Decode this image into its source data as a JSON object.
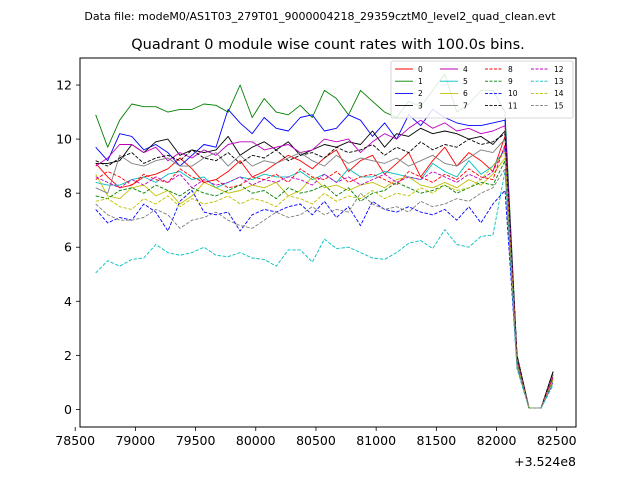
{
  "chart_data": {
    "type": "line",
    "suptitle": "Data file: modeM0/AS1T03_279T01_9000004218_29359cztM0_level2_quad_clean.evt",
    "title": "Quadrant 0 module wise count rates with 100.0s bins.",
    "xlabel": "",
    "ylabel": "",
    "x_offset_label": "+3.524e8",
    "x_offset": 352400000,
    "xlim": [
      78540,
      82660
    ],
    "ylim": [
      -0.65,
      13.0
    ],
    "x_ticks": [
      78500,
      79000,
      79500,
      80000,
      80500,
      81000,
      81500,
      82000,
      82500
    ],
    "x_tick_labels": [
      "78500",
      "79000",
      "79500",
      "80000",
      "80500",
      "81000",
      "81500",
      "82000",
      "82500"
    ],
    "y_ticks": [
      0,
      2,
      4,
      6,
      8,
      10,
      12
    ],
    "y_tick_labels": [
      "0",
      "2",
      "4",
      "6",
      "8",
      "10",
      "12"
    ],
    "grid": false,
    "legend_location": "upper-right",
    "legend_columns": 4,
    "x": [
      78670,
      78770,
      78870,
      78970,
      79070,
      79170,
      79270,
      79370,
      79470,
      79570,
      79670,
      79770,
      79870,
      79970,
      80070,
      80170,
      80270,
      80370,
      80470,
      80570,
      80670,
      80770,
      80870,
      80970,
      81070,
      81170,
      81270,
      81370,
      81470,
      81570,
      81670,
      81770,
      81870,
      81970,
      82070,
      82170,
      82270,
      82370,
      82470
    ],
    "series": [
      {
        "name": "0",
        "color": "#ff0000",
        "dash": "solid",
        "values": [
          9.1,
          8.6,
          8.2,
          8.3,
          8.6,
          8.7,
          8.9,
          9.3,
          8.9,
          8.4,
          8.5,
          8.8,
          9.2,
          8.6,
          8.8,
          9.1,
          9.4,
          9.2,
          8.9,
          9.3,
          9.6,
          8.8,
          9.2,
          9.4,
          8.7,
          9.1,
          9.5,
          8.6,
          9.2,
          9.7,
          9.0,
          9.5,
          9.2,
          8.8,
          10.1,
          1.8,
          0.05,
          0.05,
          1.2
        ]
      },
      {
        "name": "1",
        "color": "#008000",
        "dash": "solid",
        "values": [
          10.9,
          9.7,
          10.7,
          11.3,
          11.2,
          11.2,
          11.0,
          11.1,
          11.1,
          11.3,
          11.25,
          11.0,
          12.0,
          10.8,
          11.5,
          11.0,
          10.9,
          11.25,
          10.8,
          11.8,
          11.5,
          10.9,
          11.8,
          11.4,
          11.0,
          10.8,
          11.4,
          11.2,
          11.8,
          12.4,
          11.0,
          11.3,
          11.8,
          11.8,
          11.0,
          2.0,
          0.05,
          0.05,
          1.3
        ]
      },
      {
        "name": "2",
        "color": "#0000ff",
        "dash": "solid",
        "values": [
          9.7,
          9.2,
          10.2,
          10.1,
          9.6,
          9.8,
          9.5,
          9.0,
          9.4,
          9.8,
          9.7,
          11.1,
          10.6,
          10.2,
          10.8,
          10.4,
          10.3,
          10.8,
          10.9,
          10.3,
          10.4,
          10.9,
          10.7,
          10.1,
          10.6,
          10.0,
          10.9,
          10.5,
          11.1,
          10.8,
          10.6,
          10.5,
          10.5,
          10.6,
          10.7,
          1.9,
          0.05,
          0.05,
          1.4
        ]
      },
      {
        "name": "3",
        "color": "#000000",
        "dash": "solid",
        "values": [
          9.1,
          9.1,
          9.2,
          9.8,
          9.5,
          9.9,
          10.0,
          9.4,
          9.6,
          9.5,
          9.6,
          10.1,
          9.4,
          9.7,
          9.9,
          9.6,
          9.9,
          9.4,
          9.6,
          9.8,
          9.7,
          9.9,
          9.8,
          10.3,
          9.7,
          10.2,
          10.1,
          10.4,
          10.2,
          10.3,
          10.2,
          10.0,
          10.1,
          9.8,
          10.3,
          2.0,
          0.05,
          0.05,
          1.4
        ]
      },
      {
        "name": "4",
        "color": "#bf00bf",
        "dash": "solid",
        "values": [
          9.0,
          9.3,
          9.8,
          9.8,
          9.5,
          9.7,
          9.2,
          9.5,
          9.3,
          9.6,
          9.4,
          9.8,
          9.9,
          9.9,
          9.6,
          9.7,
          9.8,
          9.5,
          9.6,
          10.0,
          9.9,
          10.0,
          9.5,
          9.9,
          10.2,
          10.0,
          10.4,
          10.7,
          10.4,
          10.6,
          10.3,
          10.4,
          10.2,
          10.3,
          10.5,
          1.9,
          0.05,
          0.05,
          1.3
        ]
      },
      {
        "name": "5",
        "color": "#00bfbf",
        "dash": "solid",
        "values": [
          8.4,
          8.3,
          8.3,
          8.5,
          8.6,
          8.4,
          8.7,
          8.8,
          8.5,
          8.6,
          8.2,
          8.4,
          8.6,
          8.5,
          8.7,
          8.6,
          8.6,
          8.8,
          8.5,
          8.7,
          8.4,
          8.9,
          8.6,
          8.6,
          8.8,
          8.7,
          8.6,
          8.5,
          9.1,
          8.8,
          8.6,
          9.2,
          8.7,
          9.0,
          9.6,
          1.8,
          0.05,
          0.05,
          1.2
        ]
      },
      {
        "name": "6",
        "color": "#bfbf00",
        "dash": "solid",
        "values": [
          8.7,
          7.9,
          7.8,
          8.2,
          8.3,
          7.9,
          8.1,
          7.6,
          7.9,
          8.4,
          8.2,
          8.0,
          8.1,
          8.3,
          8.2,
          8.4,
          7.9,
          8.1,
          8.6,
          8.2,
          8.3,
          8.1,
          8.3,
          8.4,
          8.2,
          8.5,
          8.6,
          8.3,
          8.2,
          8.4,
          8.2,
          8.5,
          8.3,
          8.7,
          9.3,
          1.7,
          0.05,
          0.05,
          1.1
        ]
      },
      {
        "name": "7",
        "color": "#7f7f7f",
        "dash": "solid",
        "values": [
          8.2,
          8.0,
          9.4,
          9.1,
          9.0,
          9.2,
          9.3,
          9.0,
          9.0,
          9.3,
          9.5,
          9.0,
          9.4,
          9.0,
          9.2,
          9.1,
          9.3,
          9.5,
          9.2,
          9.0,
          9.4,
          9.1,
          9.3,
          9.2,
          9.1,
          9.3,
          9.0,
          9.2,
          9.4,
          9.1,
          9.0,
          9.3,
          9.6,
          9.5,
          10.0,
          1.9,
          0.05,
          0.05,
          1.3
        ]
      },
      {
        "name": "8",
        "color": "#ff0000",
        "dash": "dashed",
        "values": [
          8.5,
          8.8,
          8.6,
          8.3,
          8.7,
          8.5,
          8.4,
          8.9,
          8.6,
          8.4,
          8.5,
          8.2,
          8.3,
          8.6,
          8.5,
          8.7,
          8.4,
          8.9,
          8.6,
          8.5,
          8.8,
          8.4,
          8.6,
          8.7,
          8.5,
          8.3,
          8.8,
          8.6,
          8.4,
          8.7,
          8.5,
          8.9,
          8.6,
          8.5,
          9.8,
          1.8,
          0.05,
          0.05,
          1.2
        ]
      },
      {
        "name": "9",
        "color": "#008000",
        "dash": "dashed",
        "values": [
          7.9,
          7.8,
          8.1,
          8.2,
          8.0,
          8.3,
          8.1,
          7.9,
          8.2,
          8.0,
          7.9,
          8.1,
          8.3,
          8.0,
          8.1,
          7.8,
          8.2,
          8.0,
          8.1,
          8.3,
          7.9,
          8.2,
          7.7,
          8.0,
          8.1,
          8.4,
          8.2,
          8.0,
          8.1,
          8.3,
          8.0,
          8.2,
          8.4,
          8.3,
          9.2,
          1.7,
          0.05,
          0.05,
          1.1
        ]
      },
      {
        "name": "10",
        "color": "#0000ff",
        "dash": "dashed",
        "values": [
          7.4,
          6.9,
          7.1,
          7.0,
          7.6,
          7.3,
          6.6,
          7.7,
          8.1,
          7.3,
          7.2,
          7.3,
          6.6,
          7.2,
          7.4,
          7.3,
          7.5,
          7.6,
          7.2,
          7.7,
          7.1,
          7.5,
          6.8,
          7.7,
          7.4,
          7.3,
          7.5,
          7.3,
          7.2,
          7.4,
          7.0,
          7.5,
          6.9,
          7.6,
          8.1,
          1.6,
          0.05,
          0.05,
          1.0
        ]
      },
      {
        "name": "11",
        "color": "#000000",
        "dash": "dashed",
        "values": [
          9.2,
          9.0,
          9.3,
          9.5,
          9.1,
          9.3,
          9.4,
          9.2,
          9.6,
          9.3,
          9.2,
          9.5,
          9.1,
          9.4,
          9.3,
          9.6,
          9.2,
          9.4,
          9.5,
          9.3,
          9.7,
          9.5,
          9.6,
          9.8,
          9.4,
          9.7,
          9.5,
          9.9,
          9.6,
          9.8,
          9.7,
          10.0,
          9.8,
          9.9,
          10.2,
          2.0,
          0.05,
          0.05,
          1.4
        ]
      },
      {
        "name": "12",
        "color": "#bf00bf",
        "dash": "dashed",
        "values": [
          8.6,
          8.4,
          8.2,
          8.5,
          8.3,
          8.6,
          8.4,
          8.7,
          8.2,
          8.5,
          8.3,
          8.4,
          8.6,
          8.3,
          8.5,
          8.4,
          8.6,
          8.5,
          8.3,
          8.7,
          8.4,
          8.6,
          8.3,
          8.5,
          8.7,
          8.4,
          8.6,
          8.5,
          8.8,
          8.6,
          8.4,
          8.7,
          8.5,
          8.8,
          9.7,
          1.8,
          0.05,
          0.05,
          1.2
        ]
      },
      {
        "name": "13",
        "color": "#00bfbf",
        "dash": "dashed",
        "values": [
          5.05,
          5.5,
          5.3,
          5.55,
          5.6,
          6.1,
          5.8,
          5.7,
          5.8,
          6.0,
          5.7,
          5.65,
          5.8,
          5.6,
          5.55,
          5.3,
          5.9,
          5.9,
          5.45,
          6.3,
          5.95,
          6.0,
          5.8,
          5.6,
          5.55,
          5.8,
          6.15,
          6.25,
          5.95,
          6.65,
          6.1,
          6.0,
          6.4,
          6.45,
          8.8,
          1.5,
          0.05,
          0.05,
          0.9
        ]
      },
      {
        "name": "14",
        "color": "#bfbf00",
        "dash": "dashed",
        "values": [
          7.7,
          7.8,
          7.5,
          7.4,
          7.8,
          7.6,
          7.9,
          7.5,
          7.8,
          7.6,
          7.7,
          7.9,
          7.6,
          7.8,
          7.7,
          7.5,
          7.9,
          7.8,
          7.6,
          8.0,
          7.7,
          7.9,
          7.8,
          8.1,
          7.8,
          8.0,
          7.9,
          8.2,
          8.0,
          8.3,
          8.1,
          8.2,
          8.5,
          9.0,
          9.5,
          1.7,
          0.05,
          0.05,
          1.1
        ]
      },
      {
        "name": "15",
        "color": "#7f7f7f",
        "dash": "dashed",
        "values": [
          7.6,
          7.2,
          7.0,
          7.0,
          7.1,
          7.4,
          7.2,
          6.7,
          7.0,
          7.1,
          7.3,
          7.0,
          6.8,
          6.7,
          7.0,
          7.3,
          7.1,
          7.2,
          7.5,
          7.2,
          7.4,
          7.3,
          8.0,
          7.6,
          7.4,
          7.5,
          7.3,
          7.7,
          7.5,
          7.6,
          7.8,
          7.7,
          8.0,
          8.2,
          8.9,
          1.6,
          0.05,
          0.05,
          1.0
        ]
      }
    ]
  }
}
